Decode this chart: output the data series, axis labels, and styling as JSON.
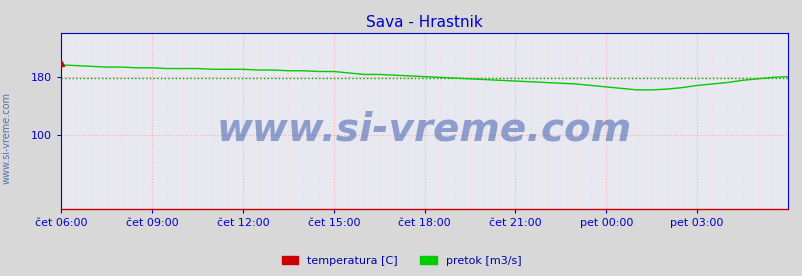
{
  "title": "Sava - Hrastnik",
  "title_color": "#0000cc",
  "title_fontsize": 11,
  "bg_color": "#d8d8d8",
  "plot_bg_color": "#e8e8f0",
  "xlabel": "",
  "ylabel": "",
  "ylim": [
    0,
    240
  ],
  "yticks": [
    100,
    180
  ],
  "xlim": [
    0,
    288
  ],
  "xtick_labels": [
    "čet 06:00",
    "čet 09:00",
    "čet 12:00",
    "čet 15:00",
    "čet 18:00",
    "čet 21:00",
    "pet 00:00",
    "pet 03:00"
  ],
  "xtick_positions": [
    0,
    36,
    72,
    108,
    144,
    180,
    216,
    252
  ],
  "grid_color_major": "#ffaaaa",
  "grid_color_minor": "#ffcccc",
  "avg_line_value": 178,
  "avg_line_color": "#00aa00",
  "watermark_text": "www.si-vreme.com",
  "watermark_color": "#3355aa",
  "watermark_fontsize": 28,
  "sidebar_text": "www.si-vreme.com",
  "sidebar_color": "#3355aa",
  "sidebar_fontsize": 7,
  "legend_items": [
    {
      "label": "temperatura [C]",
      "color": "#cc0000"
    },
    {
      "label": "pretok [m3/s]",
      "color": "#00cc00"
    }
  ],
  "pretok_x": [
    0,
    6,
    12,
    18,
    24,
    30,
    36,
    42,
    48,
    54,
    60,
    66,
    72,
    78,
    84,
    90,
    96,
    102,
    108,
    114,
    120,
    126,
    132,
    138,
    144,
    150,
    156,
    162,
    168,
    174,
    180,
    186,
    192,
    198,
    204,
    210,
    216,
    222,
    228,
    234,
    240,
    246,
    252,
    258,
    264,
    270,
    276,
    282,
    288
  ],
  "pretok_y": [
    196,
    195,
    194,
    193,
    193,
    192,
    192,
    191,
    191,
    191,
    190,
    190,
    190,
    189,
    189,
    188,
    188,
    187,
    187,
    185,
    183,
    183,
    182,
    181,
    180,
    179,
    178,
    177,
    176,
    175,
    174,
    173,
    172,
    171,
    170,
    168,
    166,
    164,
    162,
    162,
    163,
    165,
    168,
    170,
    172,
    175,
    177,
    179,
    180
  ],
  "temp_x": [
    0
  ],
  "temp_y": [
    0
  ],
  "axis_color": "#0000cc",
  "tick_color": "#0000cc",
  "tick_fontsize": 8,
  "arrow_color": "#cc0000",
  "frame_color": "#0000cc"
}
